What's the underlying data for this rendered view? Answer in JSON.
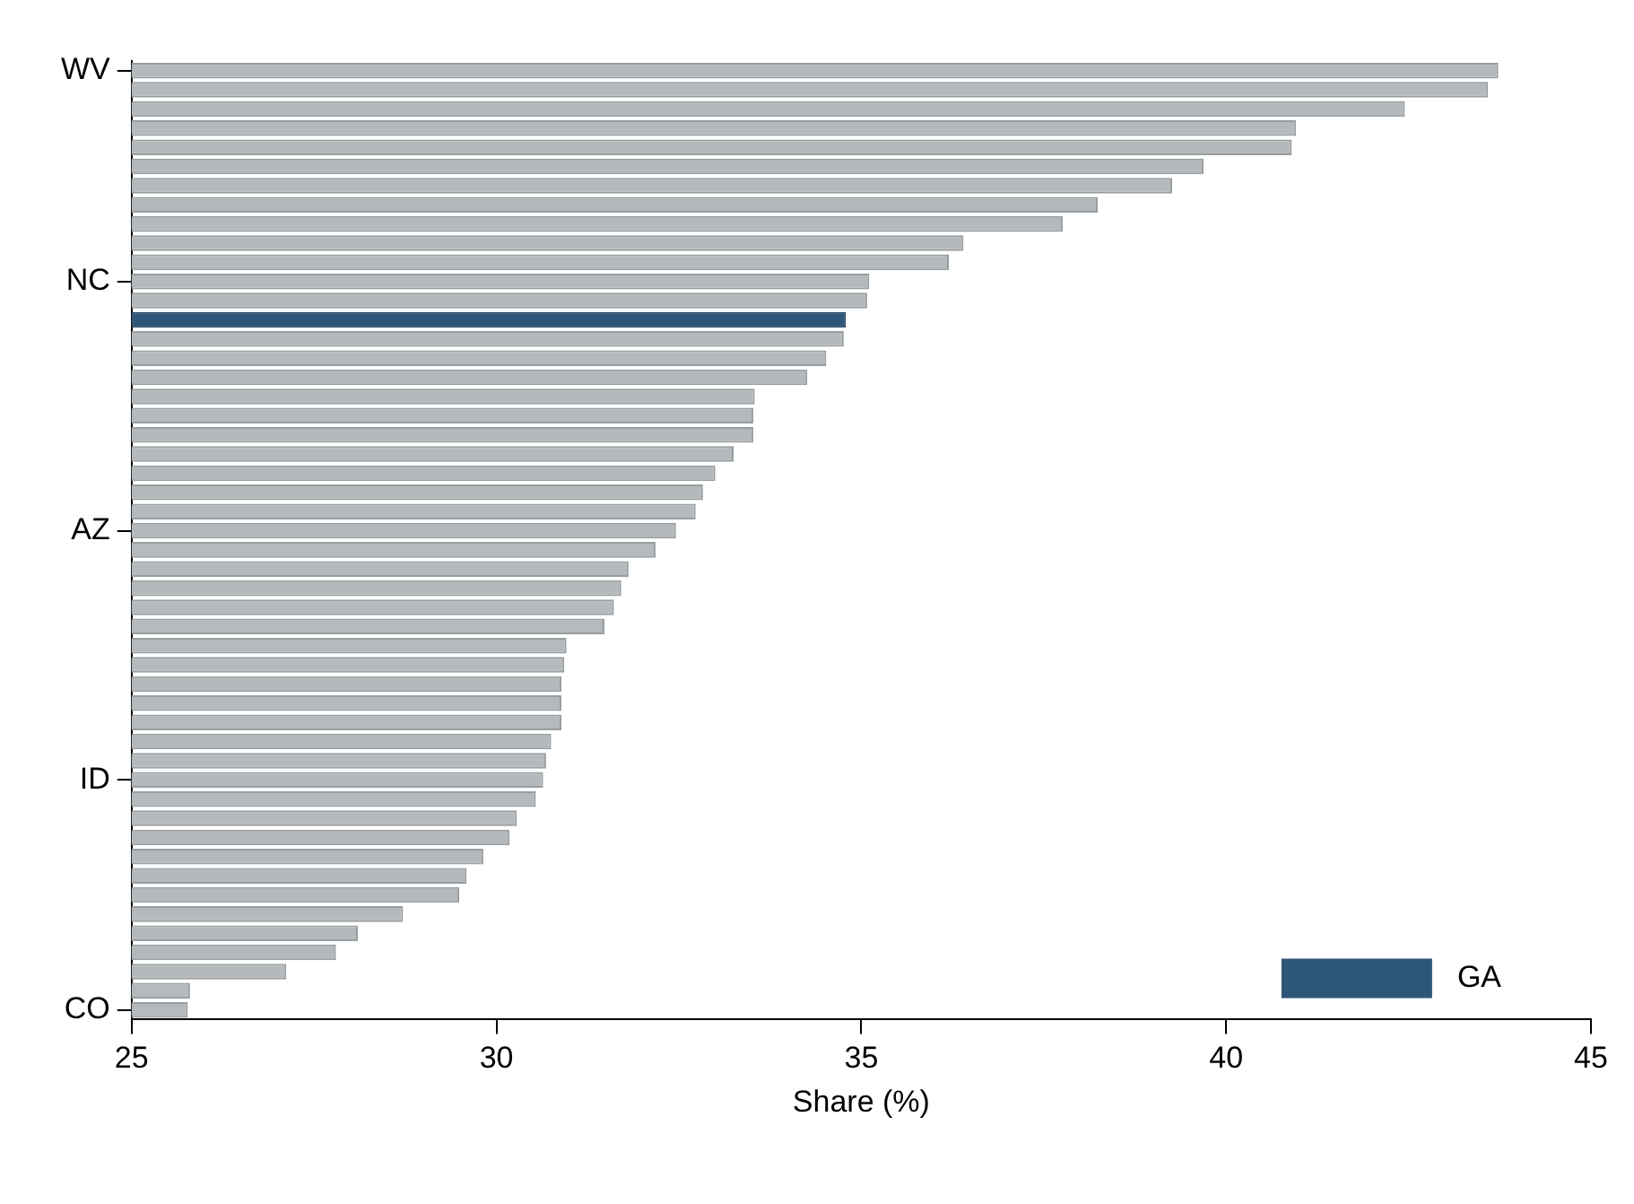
{
  "chart_data": {
    "type": "bar",
    "orientation": "horizontal",
    "xlabel": "Share (%)",
    "categories": [
      "WV",
      null,
      null,
      null,
      null,
      null,
      null,
      null,
      null,
      null,
      null,
      "NC",
      null,
      null,
      null,
      null,
      null,
      null,
      null,
      null,
      null,
      null,
      null,
      null,
      "AZ",
      null,
      null,
      null,
      null,
      null,
      null,
      null,
      null,
      null,
      null,
      null,
      null,
      "ID",
      null,
      null,
      null,
      null,
      null,
      null,
      null,
      null,
      null,
      null,
      null,
      "CO"
    ],
    "series": [
      {
        "color": "#b3b9bc",
        "values": [
          43.73,
          43.59,
          42.45,
          40.96,
          40.9,
          39.69,
          39.26,
          38.24,
          37.76,
          36.4,
          36.2,
          35.11,
          35.08,
          null,
          34.76,
          34.52,
          34.26,
          33.54,
          33.52,
          33.52,
          33.25,
          33.0,
          32.83,
          32.73,
          32.46,
          32.18,
          31.81,
          31.71,
          31.61,
          31.48,
          30.96,
          30.93,
          30.89,
          30.89,
          30.89,
          30.75,
          30.68,
          30.64,
          30.54,
          30.28,
          30.18,
          29.82,
          29.59,
          29.49,
          28.72,
          28.1,
          27.8,
          27.12,
          25.8,
          25.77
        ]
      },
      {
        "name": "GA",
        "color": "#2e5678",
        "values": [
          null,
          null,
          null,
          null,
          null,
          null,
          null,
          null,
          null,
          null,
          null,
          null,
          null,
          34.79,
          null,
          null,
          null,
          null,
          null,
          null,
          null,
          null,
          null,
          null,
          null,
          null,
          null,
          null,
          null,
          null,
          null,
          null,
          null,
          null,
          null,
          null,
          null,
          null,
          null,
          null,
          null,
          null,
          null,
          null,
          null,
          null,
          null,
          null,
          null,
          null
        ]
      }
    ],
    "xlim": [
      25,
      45
    ],
    "xticks": [
      25,
      30,
      35,
      40,
      45
    ],
    "grid": false,
    "legend": "bottom right"
  }
}
